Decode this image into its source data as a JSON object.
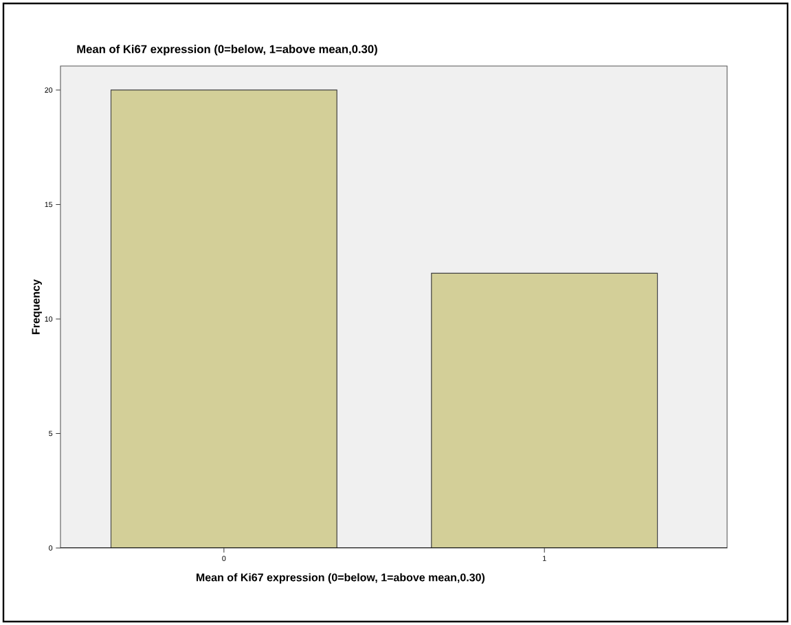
{
  "chart_data": {
    "type": "bar",
    "title": "Mean of Ki67 expression (0=below, 1=above mean,0.30)",
    "xlabel": "Mean of Ki67 expression (0=below, 1=above mean,0.30)",
    "ylabel": "Frequency",
    "categories": [
      "0",
      "1"
    ],
    "values": [
      20,
      12
    ],
    "color": "#d3cf98",
    "ylim": [
      0,
      21.05
    ],
    "yticks": [
      0,
      5,
      10,
      15,
      20
    ]
  }
}
